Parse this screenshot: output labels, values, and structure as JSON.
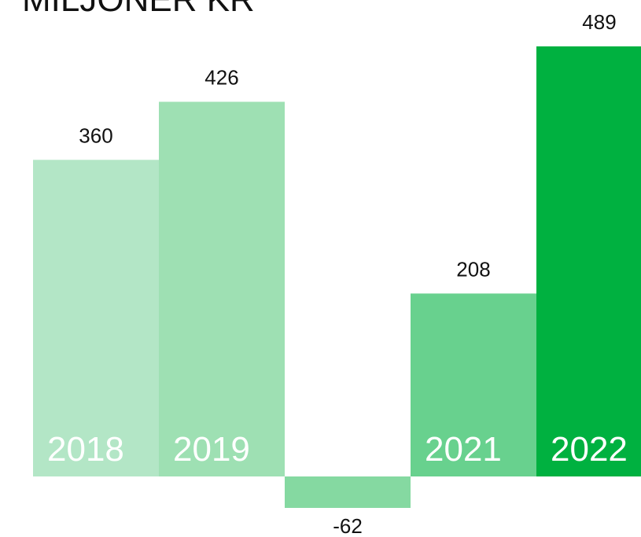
{
  "chart_data": {
    "type": "bar",
    "title": "MILJONER KR",
    "categories": [
      "2018",
      "2019",
      null,
      "2021",
      "2022"
    ],
    "values": [
      360,
      426,
      -62,
      208,
      489
    ],
    "colors": [
      "#b3e6c6",
      "#9ee0b3",
      "#85d9a1",
      "#68d18e",
      "#00b140"
    ]
  }
}
